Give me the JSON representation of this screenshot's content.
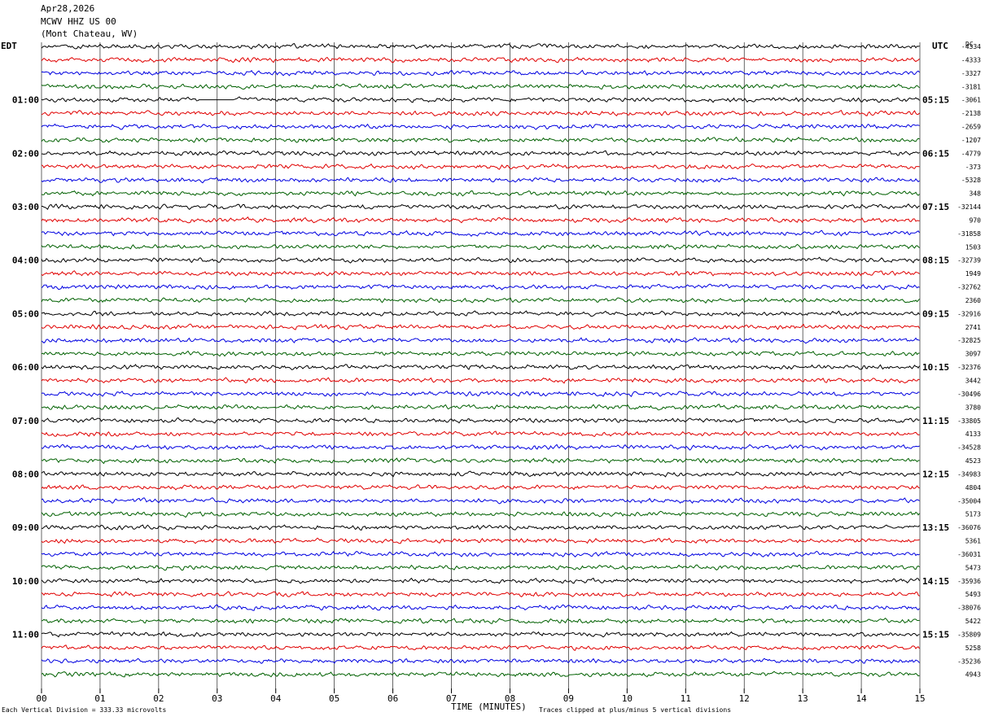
{
  "chart_data": {
    "type": "line",
    "title_lines": [
      "Apr28,2026",
      "MCWV HHZ US 00",
      "(Mont Chateau, WV)"
    ],
    "left_axis_label": "EDT",
    "right_axis_label": "UTC",
    "right_corner_label": "DC",
    "xlabel": "TIME (MINUTES)",
    "x_ticks": [
      "00",
      "01",
      "02",
      "03",
      "04",
      "05",
      "06",
      "07",
      "08",
      "09",
      "10",
      "11",
      "12",
      "13",
      "14",
      "15"
    ],
    "xlim": [
      0,
      15
    ],
    "edt_hour_labels": [
      "01:00",
      "02:00",
      "03:00",
      "04:00",
      "05:00",
      "06:00",
      "07:00",
      "08:00",
      "09:00",
      "10:00",
      "11:00"
    ],
    "utc_hour_labels": [
      "05:15",
      "06:15",
      "07:15",
      "08:15",
      "09:15",
      "10:15",
      "11:15",
      "12:15",
      "13:15",
      "14:15",
      "15:15"
    ],
    "trace_colors": [
      "#000000",
      "#e00000",
      "#0000e0",
      "#006000"
    ],
    "trace_count": 48,
    "dc_offsets": [
      "-4334",
      "-4333",
      "-3327",
      "-3181",
      "-3061",
      "-2138",
      "-2659",
      "-1207",
      "-4779",
      "-373",
      "-5328",
      "348",
      "-32144",
      "970",
      "-31858",
      "1503",
      "-32739",
      "1949",
      "-32762",
      "2360",
      "-32916",
      "2741",
      "-32825",
      "3097",
      "-32376",
      "3442",
      "-30496",
      "3780",
      "-33805",
      "4133",
      "-34528",
      "4523",
      "-34983",
      "4804",
      "-35004",
      "5173",
      "-36076",
      "5361",
      "-36031",
      "5473",
      "-35936",
      "5493",
      "-38076",
      "5422",
      "-35809",
      "5258",
      "-35236",
      "4943"
    ],
    "footer_left": "Each Vertical Division =  333.33 microvolts",
    "footer_right": "Traces clipped at plus/minus 5 vertical divisions"
  }
}
